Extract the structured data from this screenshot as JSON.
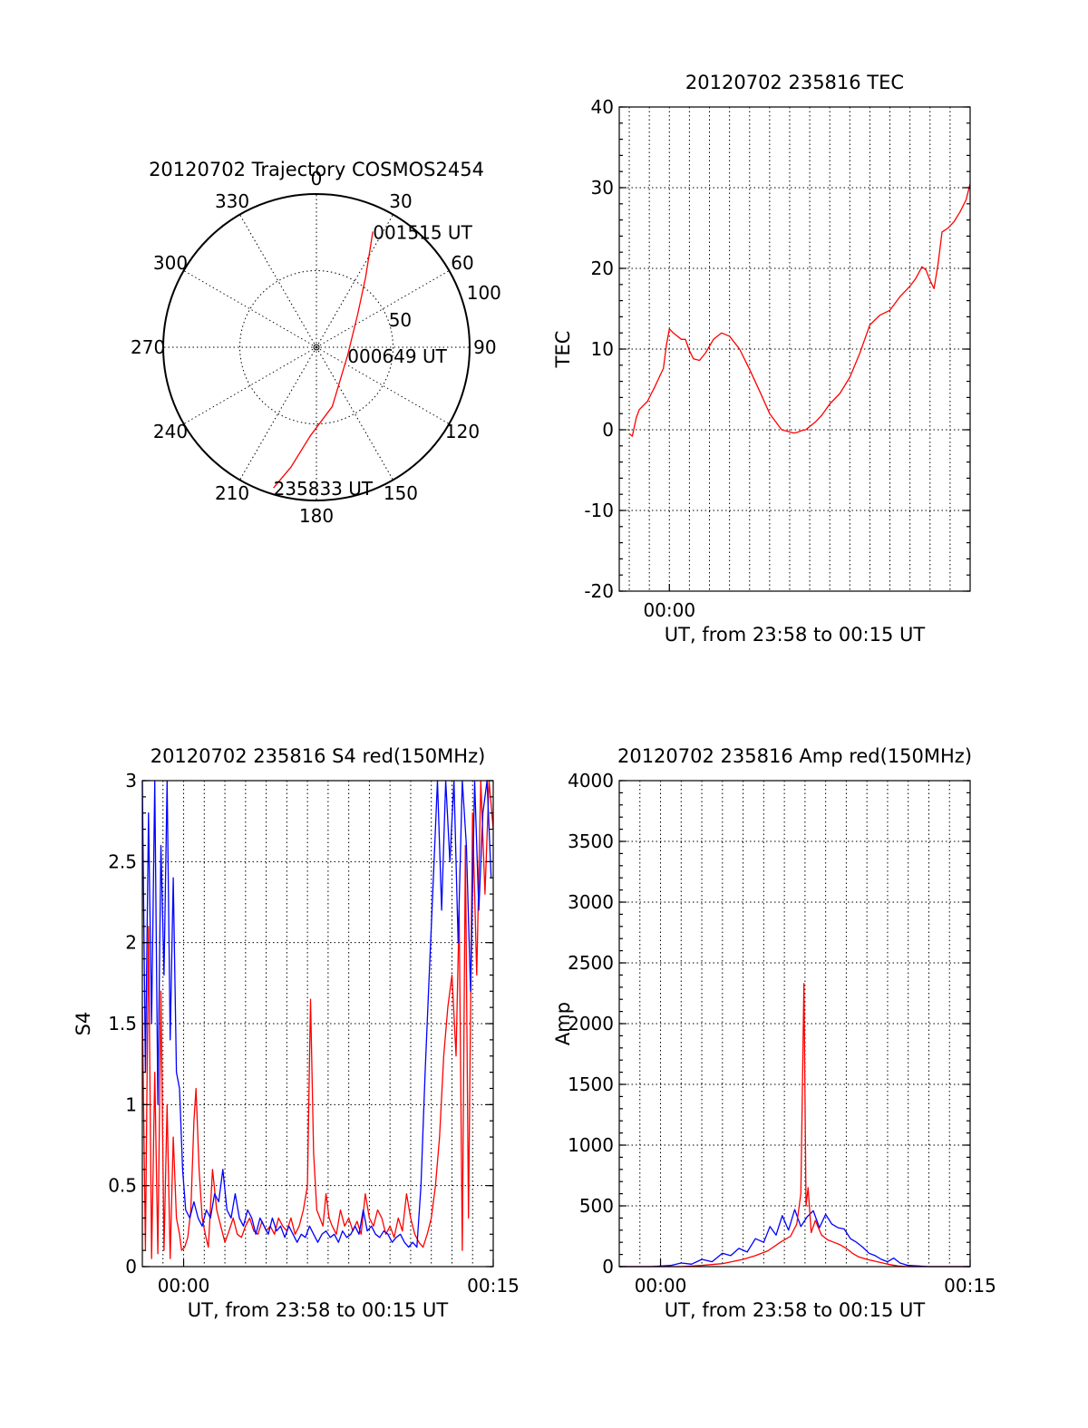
{
  "colors": {
    "red": "#ff0000",
    "blue": "#0000ff",
    "axis": "#000000"
  },
  "chart_data": [
    {
      "id": "trajectory",
      "type": "scatter",
      "projection": "polar",
      "title": "20120702 Trajectory COSMOS2454",
      "azimuth_labels": [
        "0",
        "30",
        "60",
        "90",
        "120",
        "150",
        "180",
        "210",
        "240",
        "270",
        "300",
        "330"
      ],
      "elevation_ring_labels": [
        "50",
        "100"
      ],
      "elevation_rings": [
        50,
        100
      ],
      "max_radius": 100,
      "track": {
        "color": "#ff0000",
        "points": [
          {
            "az": 197,
            "r": 96
          },
          {
            "az": 192,
            "r": 80
          },
          {
            "az": 184,
            "r": 58
          },
          {
            "az": 165,
            "r": 40
          },
          {
            "az": 105,
            "r": 21
          },
          {
            "az": 52,
            "r": 34
          },
          {
            "az": 35,
            "r": 56
          },
          {
            "az": 26,
            "r": 84
          }
        ]
      },
      "annotations": [
        {
          "text": "001515 UT",
          "az": 26,
          "r": 84
        },
        {
          "text": "000649 UT",
          "az": 105,
          "r": 21
        },
        {
          "text": "235833 UT",
          "az": 197,
          "r": 96
        }
      ]
    },
    {
      "id": "tec",
      "type": "line",
      "title": "20120702 235816 TEC",
      "xlabel": "UT, from 23:58 to 00:15 UT",
      "ylabel": "TEC",
      "xunit": "minutes from 23:58",
      "xlim": [
        -0.5,
        17
      ],
      "ylim": [
        -20,
        40
      ],
      "yticks": [
        -20,
        -10,
        0,
        10,
        20,
        30,
        40
      ],
      "xticks": [
        {
          "x": 2,
          "label": "00:00"
        }
      ],
      "grid": true,
      "series": [
        {
          "color": "#ff0000",
          "x": [
            0.0,
            0.15,
            0.35,
            0.5,
            0.7,
            0.9,
            1.1,
            1.25,
            1.4,
            1.55,
            1.7,
            1.85,
            2.0,
            2.2,
            2.4,
            2.6,
            2.8,
            3.0,
            3.2,
            3.5,
            3.8,
            4.2,
            4.6,
            5.0,
            5.5,
            6.0,
            6.5,
            7.0,
            7.3,
            7.6,
            7.9,
            8.2,
            8.4,
            8.6,
            8.8,
            9.0,
            9.3,
            9.6,
            10.0,
            10.5,
            11.0,
            11.5,
            12.0,
            12.5,
            13.0,
            13.5,
            14.0,
            14.3,
            14.6,
            14.8,
            15.0,
            15.2,
            15.4,
            15.6,
            15.9,
            16.2,
            16.5,
            16.8,
            17.0
          ],
          "y": [
            -0.5,
            -0.8,
            1.5,
            2.5,
            3.0,
            3.5,
            4.5,
            5.2,
            6.0,
            6.8,
            7.6,
            10.5,
            12.5,
            12.0,
            11.6,
            11.2,
            11.2,
            9.8,
            8.8,
            8.6,
            9.5,
            11.2,
            12.0,
            11.6,
            10.0,
            7.5,
            4.8,
            2.0,
            1.0,
            0.0,
            -0.2,
            -0.4,
            -0.3,
            -0.1,
            0.0,
            0.4,
            1.0,
            1.8,
            3.2,
            4.5,
            6.5,
            9.5,
            13.0,
            14.2,
            14.8,
            16.5,
            17.8,
            18.8,
            20.2,
            19.8,
            18.5,
            17.5,
            20.5,
            24.5,
            25.0,
            25.8,
            27.0,
            28.5,
            30.5
          ]
        }
      ]
    },
    {
      "id": "s4",
      "type": "line",
      "title": "20120702 235816 S4 red(150MHz)",
      "xlabel": "UT, from 23:58 to 00:15 UT",
      "ylabel": "S4",
      "xunit": "minutes from 23:58",
      "xlim": [
        0,
        17
      ],
      "ylim": [
        0,
        3
      ],
      "yticks": [
        0,
        0.5,
        1,
        1.5,
        2,
        2.5,
        3
      ],
      "ytick_labels": [
        "0",
        "0.5",
        "1",
        "1.5",
        "2",
        "2.5",
        "3"
      ],
      "xticks": [
        {
          "x": 2,
          "label": "00:00"
        },
        {
          "x": 17,
          "label": "00:15"
        }
      ],
      "grid": true,
      "series": [
        {
          "color": "#ff0000",
          "x": [
            0.0,
            0.15,
            0.3,
            0.45,
            0.6,
            0.75,
            0.9,
            1.05,
            1.2,
            1.35,
            1.5,
            1.65,
            1.8,
            1.9,
            2.05,
            2.2,
            2.35,
            2.5,
            2.6,
            2.75,
            2.9,
            3.05,
            3.2,
            3.4,
            3.6,
            3.8,
            4.0,
            4.2,
            4.4,
            4.6,
            4.8,
            5.0,
            5.2,
            5.4,
            5.6,
            5.8,
            6.0,
            6.2,
            6.4,
            6.6,
            6.8,
            7.0,
            7.2,
            7.4,
            7.6,
            7.8,
            8.0,
            8.15,
            8.3,
            8.45,
            8.6,
            8.75,
            8.9,
            9.05,
            9.2,
            9.4,
            9.6,
            9.8,
            10.0,
            10.2,
            10.4,
            10.6,
            10.8,
            11.0,
            11.2,
            11.4,
            11.6,
            11.8,
            12.0,
            12.2,
            12.4,
            12.6,
            12.8,
            13.0,
            13.2,
            13.4,
            13.6,
            13.8,
            14.0,
            14.2,
            14.4,
            14.6,
            14.8,
            15.0,
            15.2,
            15.35,
            15.5,
            15.65,
            15.8,
            16.0,
            16.2,
            16.4,
            16.6,
            16.8,
            17.0
          ],
          "y": [
            1.6,
            0.1,
            2.1,
            0.05,
            1.2,
            0.08,
            1.7,
            0.1,
            1.0,
            0.05,
            0.8,
            0.3,
            0.2,
            0.1,
            0.12,
            0.18,
            0.35,
            0.9,
            1.1,
            0.6,
            0.3,
            0.2,
            0.12,
            0.6,
            0.35,
            0.25,
            0.15,
            0.22,
            0.3,
            0.2,
            0.18,
            0.25,
            0.3,
            0.22,
            0.2,
            0.28,
            0.22,
            0.25,
            0.2,
            0.3,
            0.25,
            0.22,
            0.3,
            0.2,
            0.25,
            0.35,
            0.5,
            1.65,
            0.7,
            0.35,
            0.3,
            0.25,
            0.45,
            0.3,
            0.25,
            0.2,
            0.35,
            0.25,
            0.3,
            0.22,
            0.28,
            0.2,
            0.45,
            0.3,
            0.25,
            0.35,
            0.3,
            0.2,
            0.25,
            0.18,
            0.3,
            0.22,
            0.45,
            0.3,
            0.2,
            0.15,
            0.12,
            0.2,
            0.3,
            0.5,
            0.8,
            1.3,
            1.6,
            1.8,
            1.3,
            2.2,
            0.1,
            2.6,
            0.3,
            2.8,
            1.8,
            3.0,
            2.3,
            3.0,
            2.7
          ]
        },
        {
          "color": "#0000ff",
          "x": [
            0.0,
            0.15,
            0.3,
            0.45,
            0.6,
            0.75,
            0.9,
            1.05,
            1.2,
            1.35,
            1.5,
            1.65,
            1.8,
            1.95,
            2.1,
            2.3,
            2.5,
            2.7,
            2.9,
            3.1,
            3.3,
            3.5,
            3.7,
            3.9,
            4.1,
            4.3,
            4.5,
            4.7,
            4.9,
            5.1,
            5.3,
            5.5,
            5.7,
            5.9,
            6.1,
            6.3,
            6.5,
            6.7,
            6.9,
            7.1,
            7.3,
            7.5,
            7.7,
            7.9,
            8.1,
            8.3,
            8.5,
            8.7,
            8.9,
            9.1,
            9.3,
            9.5,
            9.7,
            9.9,
            10.1,
            10.3,
            10.5,
            10.7,
            10.9,
            11.1,
            11.3,
            11.5,
            11.7,
            11.9,
            12.1,
            12.3,
            12.5,
            12.7,
            12.9,
            13.1,
            13.3,
            13.5,
            13.7,
            13.9,
            14.1,
            14.3,
            14.5,
            14.7,
            14.9,
            15.1,
            15.3,
            15.5,
            15.7,
            15.9,
            16.1,
            16.3,
            16.5,
            16.7,
            16.9
          ],
          "y": [
            3.0,
            1.2,
            2.8,
            1.5,
            3.0,
            1.0,
            2.6,
            1.8,
            3.0,
            1.4,
            2.4,
            1.2,
            1.1,
            0.6,
            0.35,
            0.3,
            0.4,
            0.3,
            0.25,
            0.35,
            0.3,
            0.45,
            0.4,
            0.6,
            0.35,
            0.3,
            0.45,
            0.3,
            0.25,
            0.35,
            0.3,
            0.2,
            0.3,
            0.25,
            0.2,
            0.3,
            0.22,
            0.25,
            0.18,
            0.25,
            0.2,
            0.15,
            0.2,
            0.18,
            0.25,
            0.2,
            0.15,
            0.2,
            0.22,
            0.18,
            0.2,
            0.15,
            0.22,
            0.18,
            0.2,
            0.25,
            0.2,
            0.35,
            0.22,
            0.25,
            0.2,
            0.18,
            0.22,
            0.2,
            0.15,
            0.18,
            0.2,
            0.15,
            0.12,
            0.15,
            0.12,
            0.5,
            1.2,
            1.8,
            2.4,
            3.0,
            2.2,
            3.0,
            2.5,
            3.0,
            2.0,
            3.0,
            2.6,
            1.7,
            3.0,
            2.2,
            2.8,
            3.0,
            2.4
          ]
        }
      ]
    },
    {
      "id": "amp",
      "type": "line",
      "title": "20120702 235816 Amp red(150MHz)",
      "xlabel": "UT, from 23:58 to 00:15 UT",
      "ylabel": "Amp",
      "xunit": "minutes from 23:58",
      "xlim": [
        0,
        17
      ],
      "ylim": [
        0,
        4000
      ],
      "yticks": [
        0,
        500,
        1000,
        1500,
        2000,
        2500,
        3000,
        3500,
        4000
      ],
      "xticks": [
        {
          "x": 2,
          "label": "00:00"
        },
        {
          "x": 17,
          "label": "00:15"
        }
      ],
      "grid": true,
      "series": [
        {
          "color": "#0000ff",
          "x": [
            0.0,
            1.5,
            2.5,
            3.0,
            3.5,
            4.0,
            4.5,
            5.0,
            5.4,
            5.8,
            6.2,
            6.6,
            7.0,
            7.3,
            7.6,
            7.9,
            8.2,
            8.5,
            8.8,
            9.1,
            9.4,
            9.7,
            10.0,
            10.3,
            10.6,
            10.9,
            11.2,
            11.5,
            11.8,
            12.1,
            12.4,
            12.7,
            13.0,
            13.3,
            13.6,
            14.0,
            14.5,
            15.0,
            17.0
          ],
          "y": [
            0,
            0,
            10,
            30,
            20,
            60,
            40,
            110,
            90,
            150,
            120,
            230,
            200,
            330,
            260,
            420,
            300,
            470,
            330,
            410,
            460,
            320,
            430,
            350,
            320,
            310,
            230,
            200,
            160,
            110,
            90,
            60,
            40,
            70,
            30,
            10,
            5,
            0,
            0
          ]
        },
        {
          "color": "#ff0000",
          "x": [
            0.0,
            3.0,
            4.0,
            5.0,
            6.0,
            6.6,
            7.2,
            7.8,
            8.3,
            8.6,
            8.8,
            8.95,
            9.05,
            9.15,
            9.3,
            9.5,
            9.8,
            10.1,
            10.4,
            10.7,
            11.0,
            11.3,
            11.6,
            12.0,
            12.5,
            13.0,
            13.5,
            14.0,
            17.0
          ],
          "y": [
            0,
            0,
            10,
            25,
            60,
            90,
            130,
            200,
            250,
            350,
            600,
            2330,
            500,
            650,
            280,
            380,
            260,
            220,
            200,
            180,
            150,
            110,
            80,
            60,
            40,
            20,
            5,
            0,
            0
          ]
        }
      ]
    }
  ]
}
